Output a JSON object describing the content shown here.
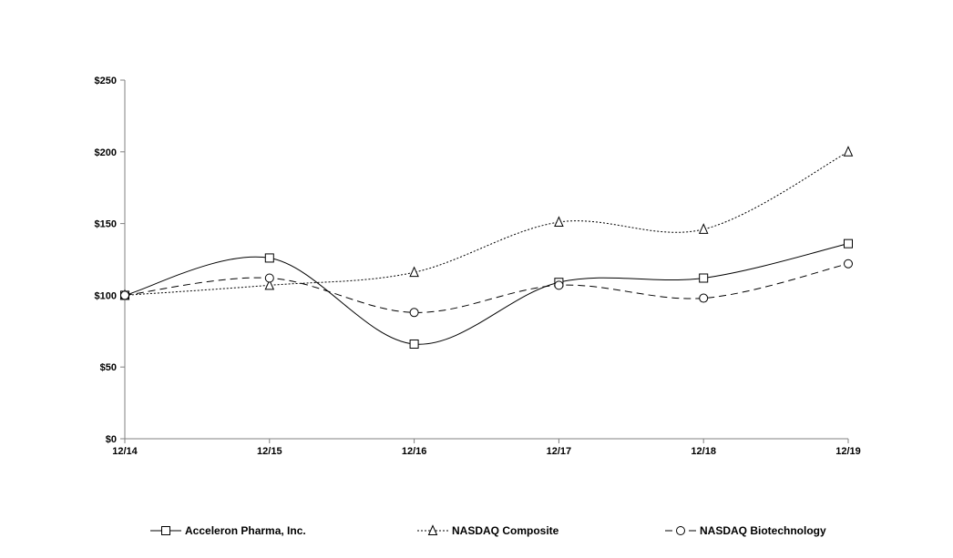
{
  "chart_data": {
    "type": "line",
    "categories": [
      "12/14",
      "12/15",
      "12/16",
      "12/17",
      "12/18",
      "12/19"
    ],
    "series": [
      {
        "name": "Acceleron Pharma, Inc.",
        "marker": "square",
        "dash": "solid",
        "values": [
          100,
          126,
          66,
          109,
          112,
          136
        ]
      },
      {
        "name": "NASDAQ Composite",
        "marker": "triangle",
        "dash": "dotted",
        "values": [
          100,
          107,
          116,
          151,
          146,
          200
        ]
      },
      {
        "name": "NASDAQ Biotechnology",
        "marker": "circle",
        "dash": "dashed",
        "values": [
          100,
          112,
          88,
          107,
          98,
          122
        ]
      }
    ],
    "ylim": [
      0,
      250
    ],
    "yticks": [
      0,
      50,
      100,
      150,
      200,
      250
    ],
    "ytick_labels": [
      "$0",
      "$50",
      "$100",
      "$150",
      "$200",
      "$250"
    ],
    "title": "",
    "xlabel": "",
    "ylabel": "",
    "grid": false,
    "legend_position": "bottom"
  }
}
